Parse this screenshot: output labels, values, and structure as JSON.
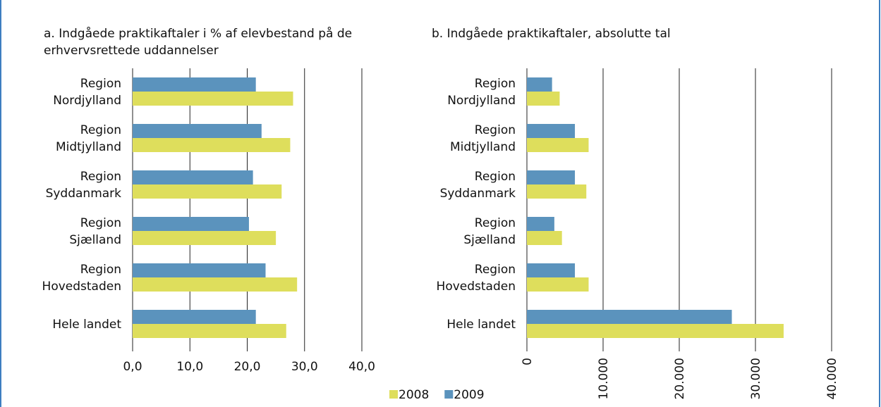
{
  "chart_data": [
    {
      "type": "bar",
      "orientation": "horizontal",
      "title": "a. Indgåede praktikaftaler i % af elevbestand på de erhvervsrettede uddannelser",
      "categories": [
        "Region Nordjylland",
        "Region Midtjylland",
        "Region Syddanmark",
        "Region Sjælland",
        "Region Hovedstaden",
        "Hele landet"
      ],
      "series": [
        {
          "name": "2008",
          "color": "#dede5c",
          "values": [
            28,
            27.5,
            26,
            25,
            28.7,
            26.8
          ]
        },
        {
          "name": "2009",
          "color": "#5b93bd",
          "values": [
            21.5,
            22.5,
            21,
            20.3,
            23.2,
            21.5
          ]
        }
      ],
      "xlim": [
        0,
        40
      ],
      "xticks": [
        {
          "value": 0,
          "label": "0,0"
        },
        {
          "value": 10,
          "label": "10,0"
        },
        {
          "value": 20,
          "label": "20,0"
        },
        {
          "value": 30,
          "label": "30,0"
        },
        {
          "value": 40,
          "label": "40,0"
        }
      ],
      "grid": true,
      "tick_rotation": 0
    },
    {
      "type": "bar",
      "orientation": "horizontal",
      "title": "b. Indgåede praktikaftaler, absolutte tal",
      "categories": [
        "Region Nordjylland",
        "Region Midtjylland",
        "Region Syddanmark",
        "Region Sjælland",
        "Region Hovedstaden",
        "Hele landet"
      ],
      "series": [
        {
          "color": "#dede5c",
          "values": [
            4300,
            8100,
            7800,
            4600,
            8100,
            33700
          ]
        },
        {
          "color": "#5b93bd",
          "values": [
            3300,
            6300,
            6300,
            3600,
            6300,
            26900
          ]
        }
      ],
      "xlim": [
        0,
        40000
      ],
      "xticks": [
        0,
        {
          "value": 10000,
          "label": "10.000"
        },
        {
          "value": 20000,
          "label": "20.000"
        },
        {
          "value": 30000,
          "label": "30.000"
        },
        {
          "value": 40000,
          "label": "40.000"
        }
      ],
      "grid": true,
      "tick_rotation": -90
    }
  ]
}
